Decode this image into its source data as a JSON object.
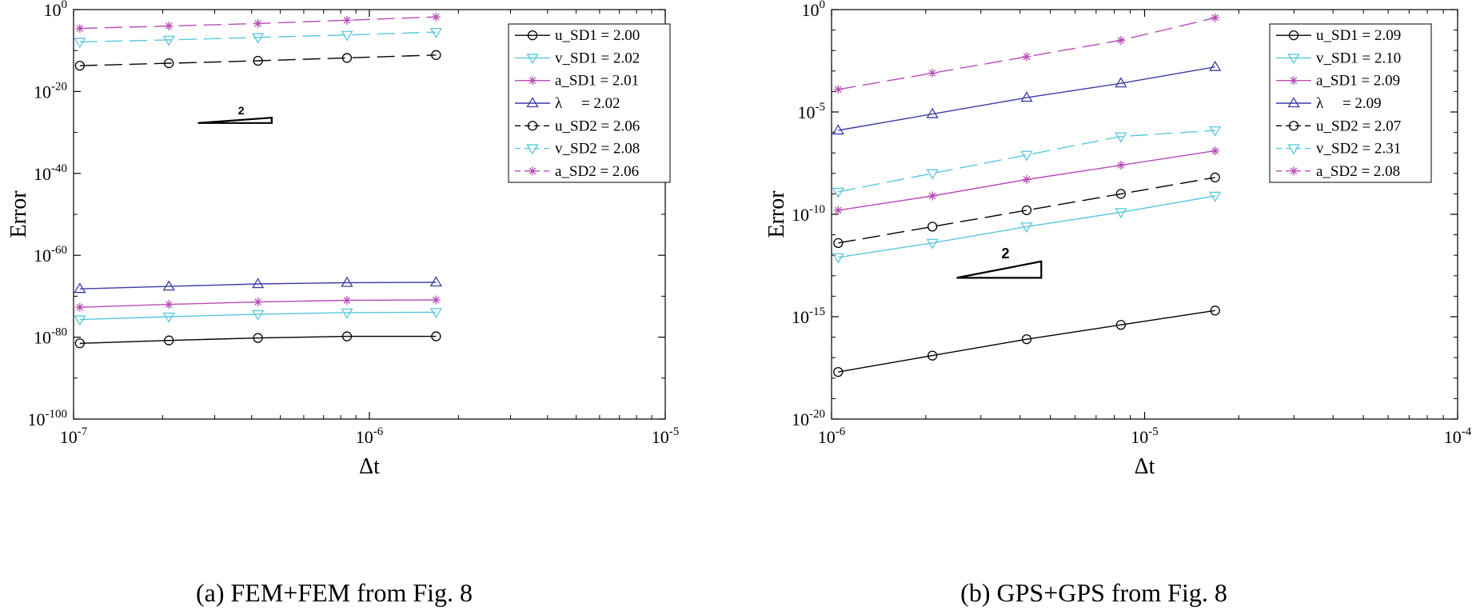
{
  "chart_data": [
    {
      "type": "line",
      "xscale": "log",
      "yscale": "log",
      "x": [
        1.05e-07,
        2.1e-07,
        4.2e-07,
        8.4e-07,
        1.68e-06
      ],
      "xlim_exp": [
        -7,
        -5
      ],
      "ylim_exp": [
        -100,
        0
      ],
      "xticks": [
        {
          "base": "10",
          "exp": "-7"
        },
        {
          "base": "10",
          "exp": "-6"
        },
        {
          "base": "10",
          "exp": "-5"
        }
      ],
      "yticks": [
        {
          "base": "10",
          "exp": "0"
        },
        {
          "base": "10",
          "exp": "-20"
        },
        {
          "base": "10",
          "exp": "-40"
        },
        {
          "base": "10",
          "exp": "-60"
        },
        {
          "base": "10",
          "exp": "-80"
        },
        {
          "base": "10",
          "exp": "-100"
        }
      ],
      "ylabel": "Error",
      "xlabel": "Δt",
      "caption": "(a)  FEM+FEM from Fig. 8",
      "slope_label": "2",
      "slope_triangle": {
        "x_exp": [
          -6.58,
          -6.33
        ],
        "y_exp": [
          -27.7,
          -26.4
        ]
      },
      "series": [
        {
          "name": "u_SD1",
          "rate": "2.00",
          "label": "u_SD1 = 2.00",
          "color": "#000000",
          "marker": "circle",
          "dash": "solid",
          "y_exp": [
            -81.5,
            -80.8,
            -80.2,
            -79.8,
            -79.8
          ]
        },
        {
          "name": "v_SD1",
          "rate": "2.02",
          "label": "v_SD1 = 2.02",
          "color": "#58c8dc",
          "marker": "triangle-down",
          "dash": "solid",
          "y_exp": [
            -75.7,
            -75.0,
            -74.4,
            -74.0,
            -73.9
          ]
        },
        {
          "name": "a_SD1",
          "rate": "2.01",
          "label": "a_SD1 = 2.01",
          "color": "#b84cb8",
          "marker": "asterisk",
          "dash": "solid",
          "y_exp": [
            -72.7,
            -72.0,
            -71.4,
            -71.0,
            -70.9
          ]
        },
        {
          "name": "λ",
          "rate": "2.02",
          "label": "λ     = 2.02",
          "color": "#3c3ca6",
          "marker": "triangle-up",
          "dash": "solid",
          "y_exp": [
            -68.2,
            -67.6,
            -67.0,
            -66.7,
            -66.6
          ]
        },
        {
          "name": "u_SD2",
          "rate": "2.06",
          "label": "u_SD2 = 2.06",
          "color": "#000000",
          "marker": "circle",
          "dash": "long",
          "y_exp": [
            -13.7,
            -13.1,
            -12.5,
            -11.8,
            -11.1
          ]
        },
        {
          "name": "v_SD2",
          "rate": "2.08",
          "label": "v_SD2 = 2.08",
          "color": "#58c8dc",
          "marker": "triangle-down",
          "dash": "long",
          "y_exp": [
            -7.9,
            -7.4,
            -6.8,
            -6.2,
            -5.5
          ]
        },
        {
          "name": "a_SD2",
          "rate": "2.06",
          "label": "a_SD2 = 2.06",
          "color": "#b84cb8",
          "marker": "asterisk",
          "dash": "long",
          "y_exp": [
            -4.6,
            -4.0,
            -3.4,
            -2.6,
            -1.8
          ]
        }
      ],
      "legend": [
        {
          "label": "u_SD1 = 2.00",
          "color": "#000000",
          "marker": "circle",
          "dash": "solid"
        },
        {
          "label": "v_SD1 = 2.02",
          "color": "#58c8dc",
          "marker": "triangle-down",
          "dash": "solid"
        },
        {
          "label": "a_SD1 = 2.01",
          "color": "#b84cb8",
          "marker": "asterisk",
          "dash": "solid"
        },
        {
          "label": "λ     = 2.02",
          "color": "#3c3ca6",
          "marker": "triangle-up",
          "dash": "solid"
        },
        {
          "label": "u_SD2 = 2.06",
          "color": "#000000",
          "marker": "circle",
          "dash": "short"
        },
        {
          "label": "v_SD2 = 2.08",
          "color": "#58c8dc",
          "marker": "triangle-down",
          "dash": "short"
        },
        {
          "label": "a_SD2 = 2.06",
          "color": "#b84cb8",
          "marker": "asterisk",
          "dash": "short"
        }
      ]
    },
    {
      "type": "line",
      "xscale": "log",
      "yscale": "log",
      "x": [
        1.05e-06,
        2.1e-06,
        4.2e-06,
        8.4e-06,
        1.68e-05
      ],
      "xlim_exp": [
        -6,
        -4
      ],
      "ylim_exp": [
        -20,
        0
      ],
      "xticks": [
        {
          "base": "10",
          "exp": "-6"
        },
        {
          "base": "10",
          "exp": "-5"
        },
        {
          "base": "10",
          "exp": "-4"
        }
      ],
      "yticks": [
        {
          "base": "10",
          "exp": "0"
        },
        {
          "base": "10",
          "exp": "-5"
        },
        {
          "base": "10",
          "exp": "-10"
        },
        {
          "base": "10",
          "exp": "-15"
        },
        {
          "base": "10",
          "exp": "-20"
        }
      ],
      "ylabel": "Error",
      "xlabel": "Δt",
      "caption": "(b)  GPS+GPS from Fig. 8",
      "slope_label": "2",
      "slope_triangle": {
        "x_exp": [
          -5.6,
          -5.33
        ],
        "y_exp": [
          -13.1,
          -12.3
        ]
      },
      "series": [
        {
          "name": "u_SD1",
          "rate": "2.09",
          "label": "u_SD1 = 2.09",
          "color": "#000000",
          "marker": "circle",
          "dash": "solid",
          "y_exp": [
            -17.7,
            -16.9,
            -16.1,
            -15.4,
            -14.7
          ]
        },
        {
          "name": "v_SD1",
          "rate": "2.10",
          "label": "v_SD1 = 2.10",
          "color": "#58c8dc",
          "marker": "triangle-down",
          "dash": "solid",
          "y_exp": [
            -12.1,
            -11.4,
            -10.6,
            -9.9,
            -9.1
          ]
        },
        {
          "name": "a_SD1",
          "rate": "2.09",
          "label": "a_SD1 = 2.09",
          "color": "#b84cb8",
          "marker": "asterisk",
          "dash": "solid",
          "y_exp": [
            -9.8,
            -9.1,
            -8.3,
            -7.6,
            -6.9
          ]
        },
        {
          "name": "λ",
          "rate": "2.09",
          "label": "λ     = 2.09",
          "color": "#3c3ca6",
          "marker": "triangle-up",
          "dash": "solid",
          "y_exp": [
            -5.9,
            -5.1,
            -4.3,
            -3.6,
            -2.8
          ]
        },
        {
          "name": "u_SD2",
          "rate": "2.07",
          "label": "u_SD2 = 2.07",
          "color": "#000000",
          "marker": "circle",
          "dash": "long",
          "y_exp": [
            -11.4,
            -10.6,
            -9.8,
            -9.0,
            -8.2
          ]
        },
        {
          "name": "v_SD2",
          "rate": "2.31",
          "label": "v_SD2 = 2.31",
          "color": "#58c8dc",
          "marker": "triangle-down",
          "dash": "long",
          "y_exp": [
            -8.9,
            -8.0,
            -7.1,
            -6.2,
            -5.9
          ]
        },
        {
          "name": "a_SD2",
          "rate": "2.08",
          "label": "a_SD2 = 2.08",
          "color": "#b84cb8",
          "marker": "asterisk",
          "dash": "long",
          "y_exp": [
            -3.9,
            -3.1,
            -2.3,
            -1.5,
            -0.4
          ]
        }
      ],
      "legend": [
        {
          "label": "u_SD1 = 2.09",
          "color": "#000000",
          "marker": "circle",
          "dash": "solid"
        },
        {
          "label": "v_SD1 = 2.10",
          "color": "#58c8dc",
          "marker": "triangle-down",
          "dash": "solid"
        },
        {
          "label": "a_SD1 = 2.09",
          "color": "#b84cb8",
          "marker": "asterisk",
          "dash": "solid"
        },
        {
          "label": "λ     = 2.09",
          "color": "#3c3ca6",
          "marker": "triangle-up",
          "dash": "solid"
        },
        {
          "label": "u_SD2 = 2.07",
          "color": "#000000",
          "marker": "circle",
          "dash": "short"
        },
        {
          "label": "v_SD2 = 2.31",
          "color": "#58c8dc",
          "marker": "triangle-down",
          "dash": "short"
        },
        {
          "label": "a_SD2 = 2.08",
          "color": "#b84cb8",
          "marker": "asterisk",
          "dash": "short"
        }
      ]
    }
  ]
}
